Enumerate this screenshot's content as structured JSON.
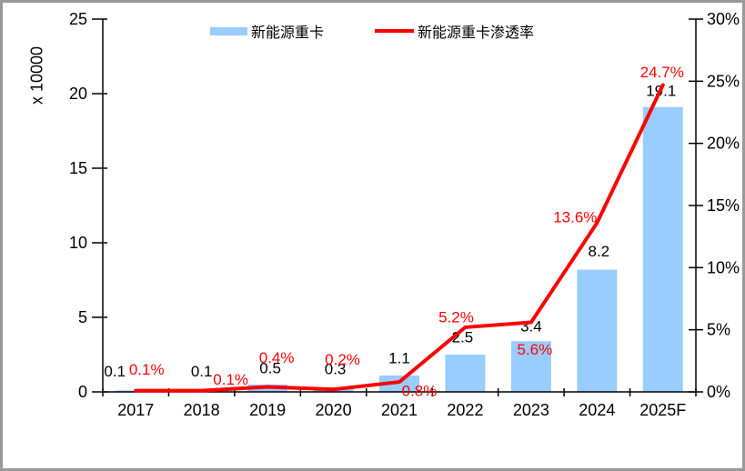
{
  "chart_data": {
    "type": "bar",
    "subtype": "bar+line-dual-axis",
    "categories": [
      "2017",
      "2018",
      "2019",
      "2020",
      "2021",
      "2022",
      "2023",
      "2024",
      "2025F"
    ],
    "series": [
      {
        "name": "新能源重卡",
        "type": "bar",
        "axis": "left",
        "color": "#99CCFF",
        "values": [
          0.1,
          0.1,
          0.5,
          0.3,
          1.1,
          2.5,
          3.4,
          8.2,
          19.1
        ],
        "labels": [
          "0.1",
          "0.1",
          "0.5",
          "0.3",
          "1.1",
          "2.5",
          "3.4",
          "8.2",
          "19.1"
        ]
      },
      {
        "name": "新能源重卡渗透率",
        "type": "line",
        "axis": "right",
        "color": "#FF0000",
        "values": [
          0.1,
          0.1,
          0.4,
          0.2,
          0.8,
          5.2,
          5.6,
          13.6,
          24.7
        ],
        "labels": [
          "0.1%",
          "0.1%",
          "0.4%",
          "0.2%",
          "0.8%",
          "5.2%",
          "5.6%",
          "13.6%",
          "24.7%"
        ]
      }
    ],
    "left_axis": {
      "title": "x 10000",
      "min": 0,
      "max": 25,
      "ticks": [
        "0",
        "5",
        "10",
        "15",
        "20",
        "25"
      ]
    },
    "right_axis": {
      "min": 0,
      "max": 30,
      "ticks": [
        "0%",
        "5%",
        "10%",
        "15%",
        "20%",
        "25%",
        "30%"
      ]
    },
    "legend_position": "top",
    "grid": "off",
    "colors": {
      "bar": "#99CCFF",
      "line": "#FF0000",
      "axis": "#000000",
      "frame_border": "#999999",
      "background": "#FFFFFF"
    }
  }
}
